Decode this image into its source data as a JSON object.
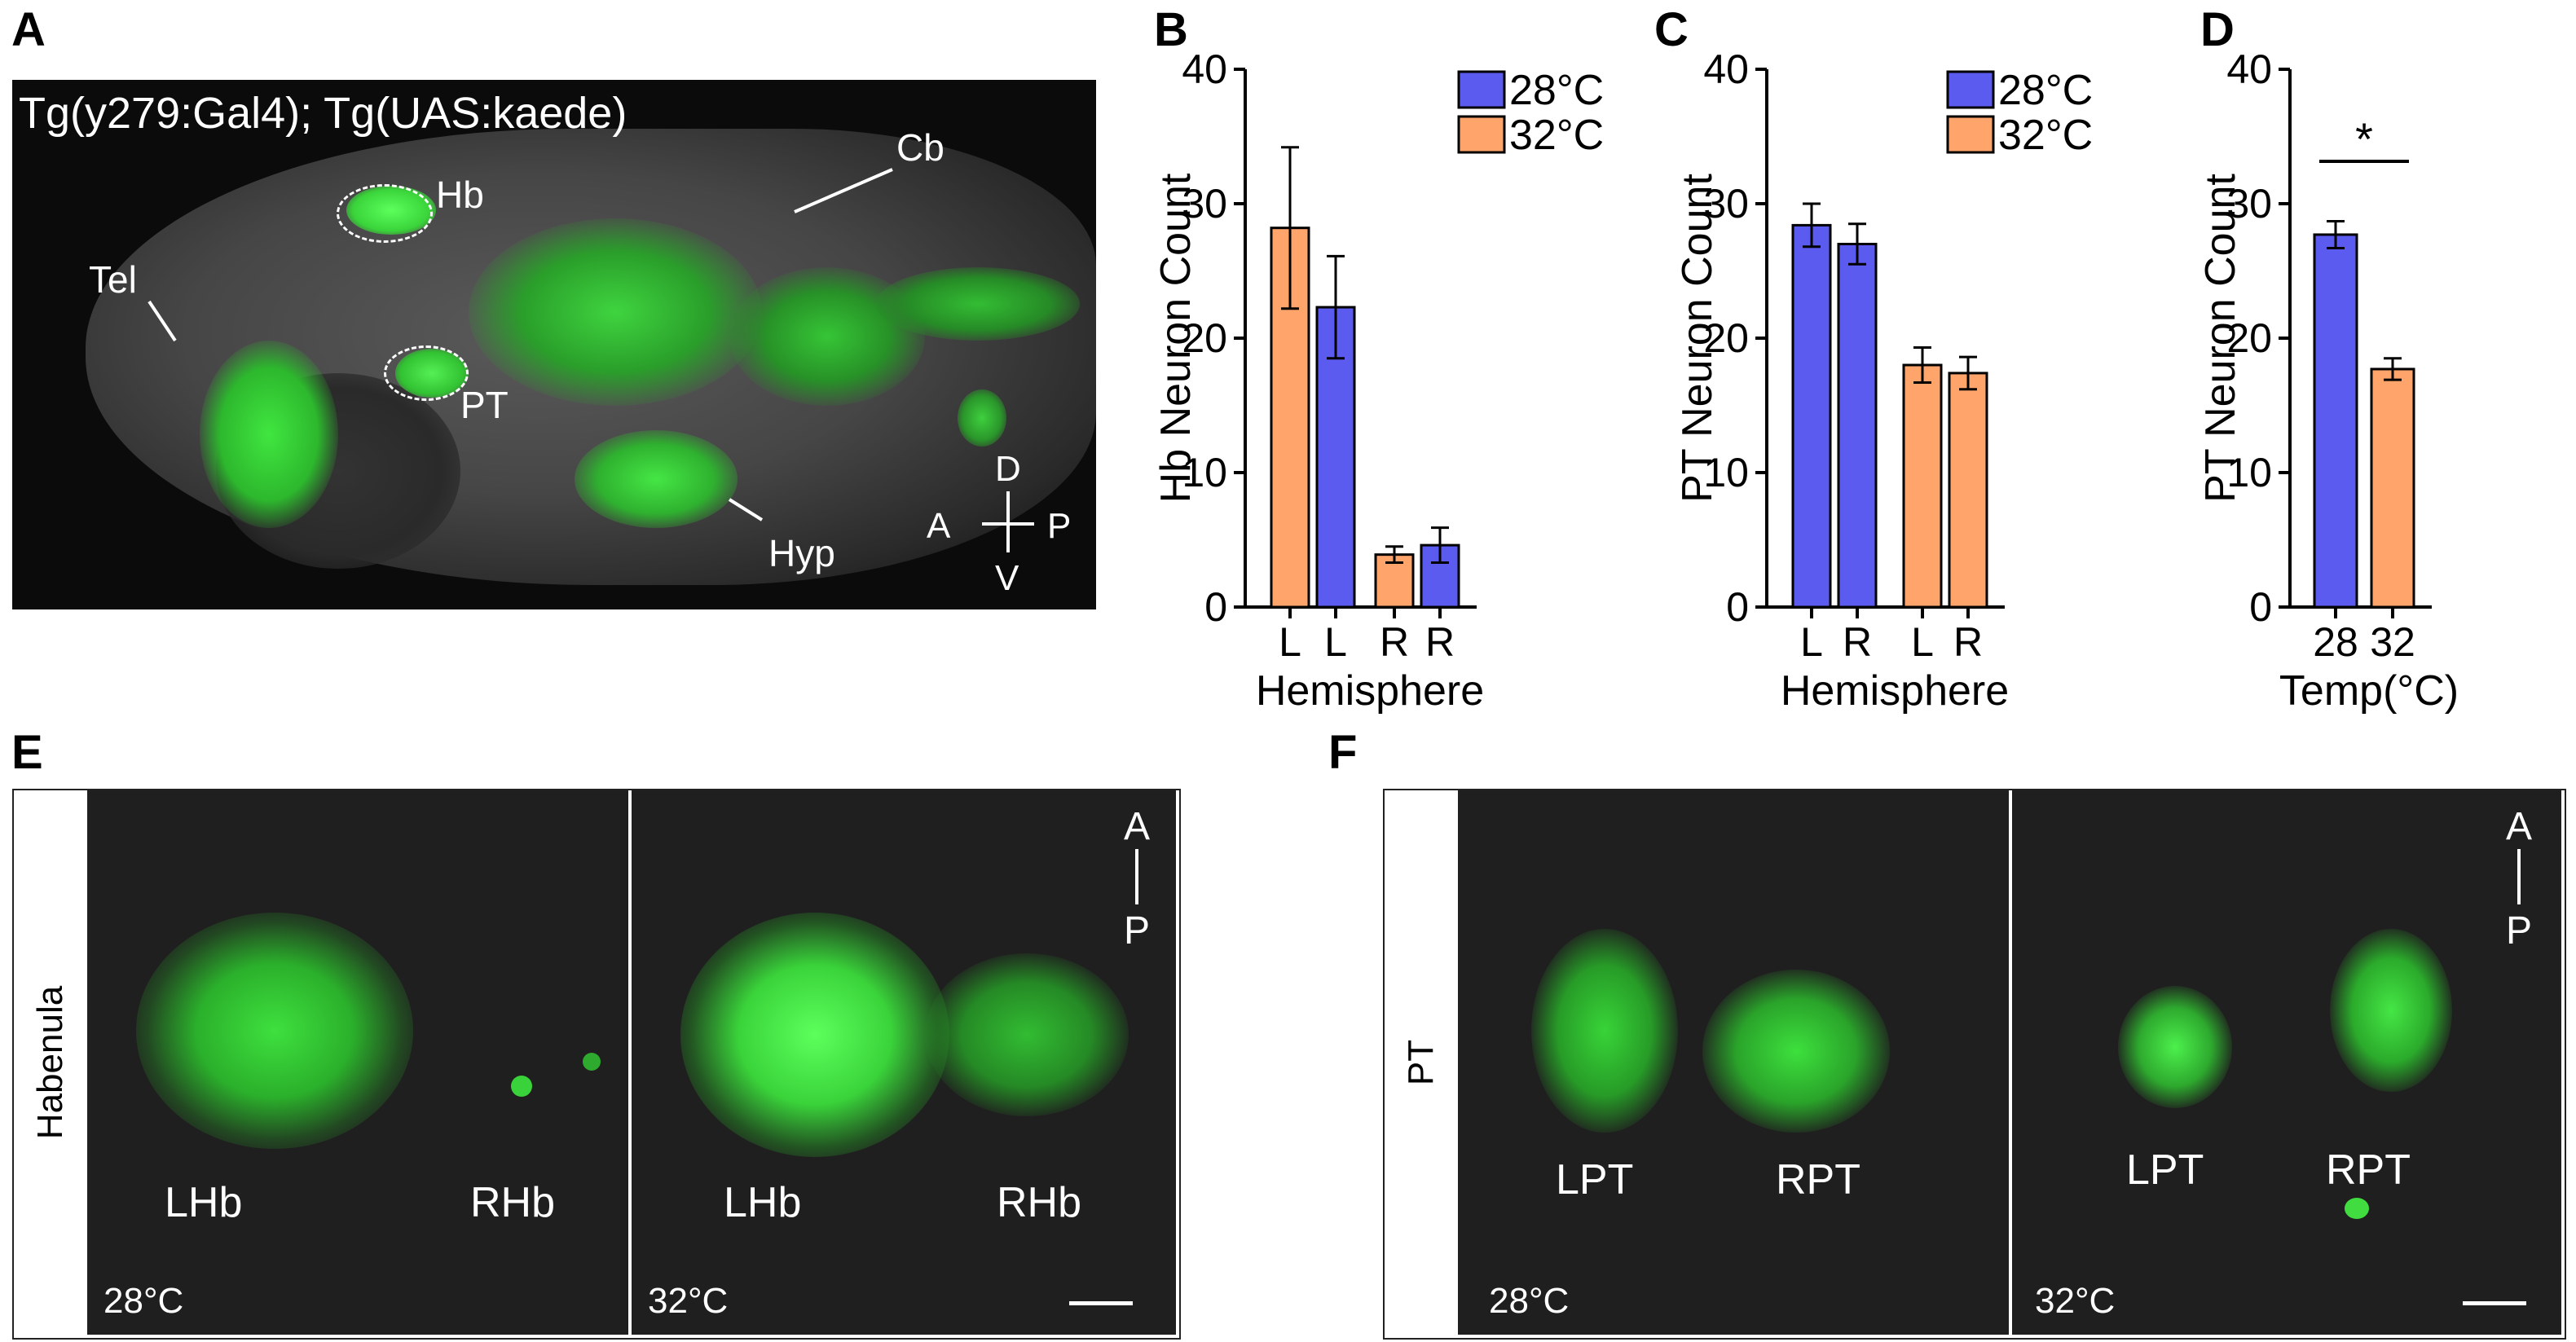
{
  "panels": {
    "a": "A",
    "b": "B",
    "c": "C",
    "d": "D",
    "e": "E",
    "f": "F"
  },
  "panel_a": {
    "title": "Tg(y279:Gal4); Tg(UAS:kaede)",
    "labels": {
      "hb": "Hb",
      "cb": "Cb",
      "tel": "Tel",
      "pt": "PT",
      "hyp": "Hyp"
    },
    "compass": {
      "d": "D",
      "v": "V",
      "a": "A",
      "p": "P"
    }
  },
  "panel_e": {
    "row_label": "Habenula",
    "left": {
      "lhb": "LHb",
      "rhb": "RHb",
      "temp": "28°C"
    },
    "right": {
      "lhb": "LHb",
      "rhb": "RHb",
      "temp": "32°C"
    },
    "orient": {
      "a": "A",
      "p": "P"
    }
  },
  "panel_f": {
    "row_label": "PT",
    "left": {
      "lpt": "LPT",
      "rpt": "RPT",
      "temp": "28°C"
    },
    "right": {
      "lpt": "LPT",
      "rpt": "RPT",
      "temp": "32°C"
    },
    "orient": {
      "a": "A",
      "p": "P"
    }
  },
  "colors": {
    "c28": "#5b5cef",
    "c32": "#ffa46b",
    "fluor": "#38e23a"
  },
  "chart_data": [
    {
      "panel": "B",
      "type": "bar",
      "ylabel": "Hb Neuron Count",
      "xlabel": "Hemisphere",
      "ylim": [
        0,
        40
      ],
      "yticks": [
        "0",
        "10",
        "20",
        "30",
        "40"
      ],
      "legend": [
        "28°C",
        "32°C"
      ],
      "legend_position": "top-right",
      "bars": [
        {
          "label": "L",
          "series": "32°C",
          "value": 28.2,
          "err": 6.0
        },
        {
          "label": "L",
          "series": "28°C",
          "value": 22.3,
          "err": 3.8
        },
        {
          "label": "R",
          "series": "32°C",
          "value": 3.9,
          "err": 0.6
        },
        {
          "label": "R",
          "series": "28°C",
          "value": 4.6,
          "err": 1.3
        }
      ]
    },
    {
      "panel": "C",
      "type": "bar",
      "ylabel": "PT Neuron Count",
      "xlabel": "Hemisphere",
      "ylim": [
        0,
        40
      ],
      "yticks": [
        "0",
        "10",
        "20",
        "30",
        "40"
      ],
      "legend": [
        "28°C",
        "32°C"
      ],
      "legend_position": "top-right",
      "bars": [
        {
          "label": "L",
          "series": "28°C",
          "value": 28.4,
          "err": 1.6
        },
        {
          "label": "R",
          "series": "28°C",
          "value": 27.0,
          "err": 1.5
        },
        {
          "label": "L",
          "series": "32°C",
          "value": 18.0,
          "err": 1.3
        },
        {
          "label": "R",
          "series": "32°C",
          "value": 17.4,
          "err": 1.2
        }
      ]
    },
    {
      "panel": "D",
      "type": "bar",
      "ylabel": "PT Neuron Count",
      "xlabel": "Temp(°C)",
      "ylim": [
        0,
        40
      ],
      "yticks": [
        "0",
        "10",
        "20",
        "30",
        "40"
      ],
      "significance": "*",
      "bars": [
        {
          "label": "28",
          "series": "28°C",
          "value": 27.7,
          "err": 1.0
        },
        {
          "label": "32",
          "series": "32°C",
          "value": 17.7,
          "err": 0.8
        }
      ]
    }
  ]
}
